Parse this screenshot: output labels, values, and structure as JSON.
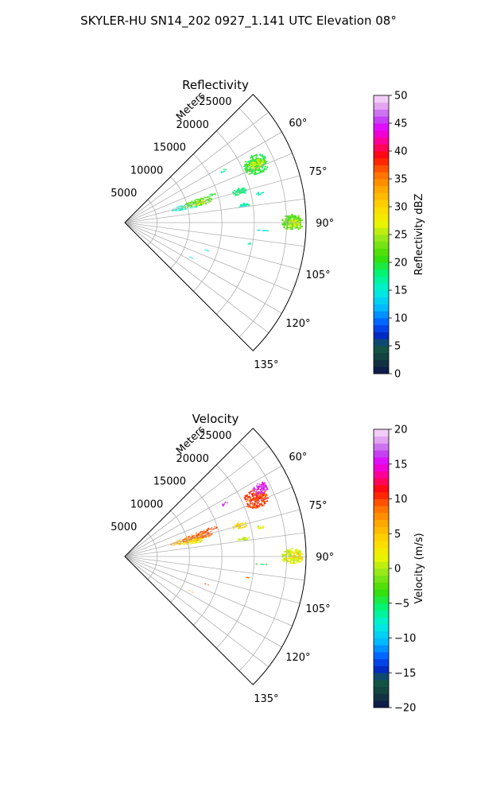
{
  "figure": {
    "title": "SKYLER-HU  SN14_202  0927_1.141 UTC Elevation 08°"
  },
  "chart_data": [
    {
      "type": "heatmap",
      "projection": "polar-sector",
      "title": "Reflectivity",
      "radial_label": "Meters",
      "range_ticks": [
        5000,
        10000,
        15000,
        20000,
        25000
      ],
      "range_max": 28000,
      "azimuth_range_deg": [
        45,
        135
      ],
      "azimuth_gridlines_deg": [
        45,
        52.5,
        60,
        67.5,
        75,
        82.5,
        90,
        97.5,
        105,
        112.5,
        120,
        127.5,
        135
      ],
      "azimuth_tick_labels": [
        "60°",
        "75°",
        "90°",
        "105°",
        "120°",
        "135°"
      ],
      "azimuth_tick_values": [
        60,
        75,
        90,
        105,
        120,
        135
      ],
      "colorbar": {
        "label": "Reflectivity dBZ",
        "min": 0,
        "max": 50,
        "ticks": [
          0,
          5,
          10,
          15,
          20,
          25,
          30,
          35,
          40,
          45,
          50
        ],
        "tick_labels": [
          "0",
          "5",
          "10",
          "15",
          "20",
          "25",
          "30",
          "35",
          "40",
          "45",
          "50"
        ]
      },
      "cells": [
        {
          "az_range": [
            72.5,
            78.0
          ],
          "r_range": [
            7000,
            12500
          ],
          "value": 15,
          "density": 0.55
        },
        {
          "az_range": [
            71.5,
            77.5
          ],
          "r_range": [
            9000,
            14000
          ],
          "value": 22,
          "density": 0.75
        },
        {
          "az_range": [
            73.0,
            76.5
          ],
          "r_range": [
            10500,
            13000
          ],
          "value": 28,
          "density": 0.5
        },
        {
          "az_range": [
            71.0,
            73.0
          ],
          "r_range": [
            12000,
            15000
          ],
          "value": 20,
          "density": 0.6
        },
        {
          "az_range": [
            62.0,
            70.0
          ],
          "r_range": [
            20000,
            24000
          ],
          "value": 20,
          "density": 0.8
        },
        {
          "az_range": [
            64.0,
            68.0
          ],
          "r_range": [
            21000,
            23500
          ],
          "value": 26,
          "density": 0.6
        },
        {
          "az_range": [
            73.0,
            76.5
          ],
          "r_range": [
            17000,
            19500
          ],
          "value": 18,
          "density": 0.75
        },
        {
          "az_range": [
            80.5,
            82.5
          ],
          "r_range": [
            17500,
            19500
          ],
          "value": 16,
          "density": 0.7
        },
        {
          "az_range": [
            77.0,
            78.5
          ],
          "r_range": [
            20000,
            22000
          ],
          "value": 16,
          "density": 0.55
        },
        {
          "az_range": [
            87.0,
            92.5
          ],
          "r_range": [
            24000,
            27500
          ],
          "value": 22,
          "density": 0.8
        },
        {
          "az_range": [
            88.5,
            91.5
          ],
          "r_range": [
            25000,
            27000
          ],
          "value": 27,
          "density": 0.6
        },
        {
          "az_range": [
            92.5,
            93.5
          ],
          "r_range": [
            20000,
            22500
          ],
          "value": 15,
          "density": 0.6
        },
        {
          "az_range": [
            61.0,
            63.0
          ],
          "r_range": [
            16500,
            17800
          ],
          "value": 17,
          "density": 0.5
        },
        {
          "az_range": [
            99.0,
            100.0
          ],
          "r_range": [
            19000,
            20000
          ],
          "value": 15,
          "density": 0.5
        },
        {
          "az_range": [
            108.0,
            109.0
          ],
          "r_range": [
            13000,
            13800
          ],
          "value": 14,
          "density": 0.5
        },
        {
          "az_range": [
            117.0,
            118.0
          ],
          "r_range": [
            11000,
            11800
          ],
          "value": 14,
          "density": 0.5
        }
      ]
    },
    {
      "type": "heatmap",
      "projection": "polar-sector",
      "title": "Velocity",
      "radial_label": "Meters",
      "range_ticks": [
        5000,
        10000,
        15000,
        20000,
        25000
      ],
      "range_max": 28000,
      "azimuth_range_deg": [
        45,
        135
      ],
      "azimuth_gridlines_deg": [
        45,
        52.5,
        60,
        67.5,
        75,
        82.5,
        90,
        97.5,
        105,
        112.5,
        120,
        127.5,
        135
      ],
      "azimuth_tick_labels": [
        "60°",
        "75°",
        "90°",
        "105°",
        "120°",
        "135°"
      ],
      "azimuth_tick_values": [
        60,
        75,
        90,
        105,
        120,
        135
      ],
      "colorbar": {
        "label": "Velocity (m/s)",
        "min": -20,
        "max": 20,
        "ticks": [
          -20,
          -15,
          -10,
          -5,
          0,
          5,
          10,
          15,
          20
        ],
        "tick_labels": [
          "−20",
          "−15",
          "−10",
          "−5",
          "0",
          "5",
          "10",
          "15",
          "20"
        ]
      },
      "cells": [
        {
          "az_range": [
            72.5,
            78.0
          ],
          "r_range": [
            7000,
            12500
          ],
          "value": 6,
          "density": 0.7
        },
        {
          "az_range": [
            71.5,
            77.5
          ],
          "r_range": [
            9000,
            14000
          ],
          "value": 9,
          "density": 0.7
        },
        {
          "az_range": [
            75.5,
            79.5
          ],
          "r_range": [
            9000,
            12500
          ],
          "value": 2,
          "density": 0.75
        },
        {
          "az_range": [
            71.0,
            73.0
          ],
          "r_range": [
            12000,
            15000
          ],
          "value": 10,
          "density": 0.6
        },
        {
          "az_range": [
            62.0,
            70.0
          ],
          "r_range": [
            20000,
            24000
          ],
          "value": 10,
          "density": 0.8
        },
        {
          "az_range": [
            61.0,
            65.5
          ],
          "r_range": [
            22000,
            24500
          ],
          "value": 16,
          "density": 0.8
        },
        {
          "az_range": [
            73.0,
            76.5
          ],
          "r_range": [
            17000,
            19500
          ],
          "value": 4,
          "density": 0.75
        },
        {
          "az_range": [
            80.5,
            82.5
          ],
          "r_range": [
            17500,
            19500
          ],
          "value": 1,
          "density": 0.7
        },
        {
          "az_range": [
            77.0,
            78.5
          ],
          "r_range": [
            20000,
            22000
          ],
          "value": 1,
          "density": 0.55
        },
        {
          "az_range": [
            87.0,
            92.5
          ],
          "r_range": [
            24000,
            27500
          ],
          "value": 1,
          "density": 0.8
        },
        {
          "az_range": [
            88.5,
            91.5
          ],
          "r_range": [
            25500,
            27500
          ],
          "value": 4,
          "density": 0.55
        },
        {
          "az_range": [
            92.5,
            93.5
          ],
          "r_range": [
            20000,
            22500
          ],
          "value": -4,
          "density": 0.6
        },
        {
          "az_range": [
            61.0,
            63.0
          ],
          "r_range": [
            16500,
            17800
          ],
          "value": 16,
          "density": 0.55
        },
        {
          "az_range": [
            99.0,
            100.0
          ],
          "r_range": [
            19000,
            20000
          ],
          "value": 8,
          "density": 0.5
        },
        {
          "az_range": [
            108.0,
            109.0
          ],
          "r_range": [
            13000,
            13800
          ],
          "value": 10,
          "density": 0.5
        },
        {
          "az_range": [
            117.0,
            118.0
          ],
          "r_range": [
            11000,
            11800
          ],
          "value": 6,
          "density": 0.4
        }
      ]
    }
  ]
}
